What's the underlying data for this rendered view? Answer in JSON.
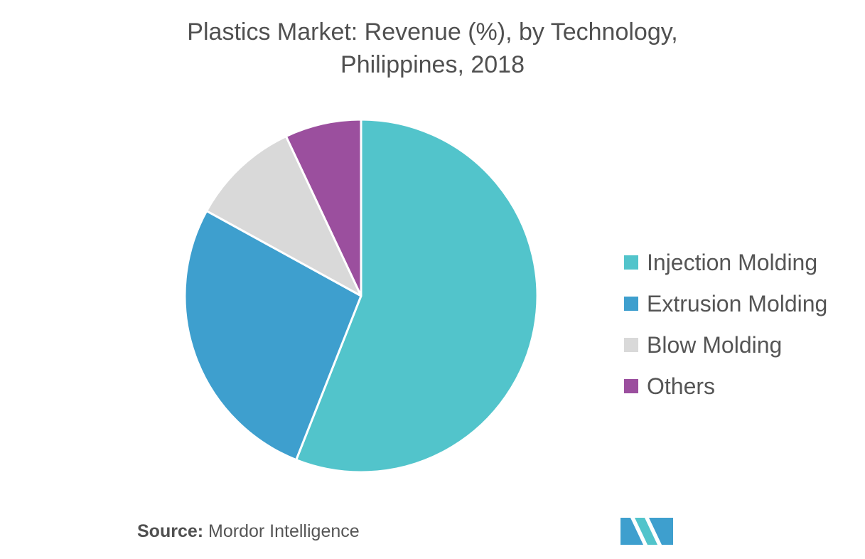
{
  "chart_data": {
    "type": "pie",
    "title": "Plastics Market: Revenue (%), by Technology,",
    "subtitle": "Philippines, 2018",
    "slices": [
      {
        "label": "Injection Molding",
        "value": 56,
        "color": "#52c4cb"
      },
      {
        "label": "Extrusion Molding",
        "value": 27,
        "color": "#3e9fce"
      },
      {
        "label": "Blow Molding",
        "value": 10,
        "color": "#d9d9d9"
      },
      {
        "label": "Others",
        "value": 7,
        "color": "#9b4f9e"
      }
    ],
    "legend_position": "right"
  },
  "footer": {
    "source_label": "Source:",
    "source_value": "Mordor Intelligence"
  },
  "logo": {
    "icon": "mordor-intelligence-logo-icon",
    "colors": [
      "#3e9fce",
      "#52c4cb"
    ]
  }
}
